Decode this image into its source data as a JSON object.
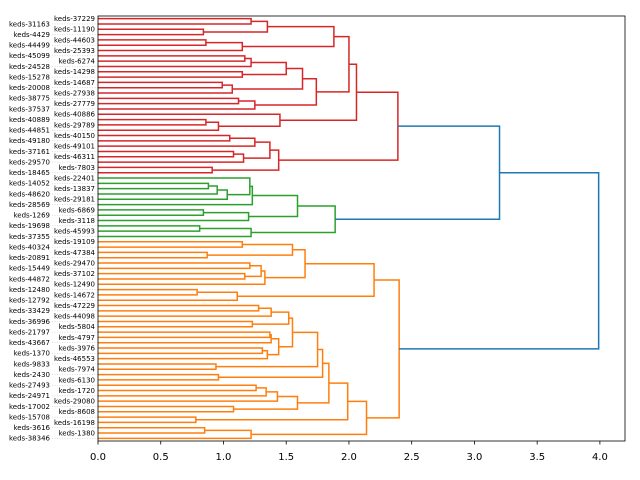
{
  "chart_data": {
    "type": "dendrogram",
    "orientation": "right",
    "title": "",
    "xlabel": "",
    "ylabel": "",
    "xlim": [
      0,
      4.2
    ],
    "xticks": [
      "0.0",
      "0.5",
      "1.0",
      "1.5",
      "2.0",
      "2.5",
      "3.0",
      "3.5",
      "4.0"
    ],
    "above_threshold_color": "#1f77b4",
    "tree": [
      3.99,
      [
        3.2,
        {
          "color": "#d62728",
          "node": [
            2.39,
            [
              2.06,
              [
                2.0,
                [
                  1.88,
                  [
                    1.35,
                    [
                      1.22,
                      "keds-37229",
                      "keds-31163"
                    ],
                    [
                      0.84,
                      "keds-11190",
                      "keds-4429"
                    ]
                  ],
                  [
                    1.15,
                    [
                      0.86,
                      "keds-44603",
                      "keds-44499"
                    ],
                    "keds-25393"
                  ]
                ],
                [
                  1.74,
                  [
                    1.63,
                    [
                      1.5,
                      [
                        1.22,
                        [
                          1.17,
                          "keds-45099",
                          "keds-6274"
                        ],
                        "keds-24528"
                      ],
                      [
                        1.15,
                        "keds-14298",
                        "keds-15278"
                      ]
                    ],
                    [
                      1.07,
                      [
                        0.99,
                        "keds-14687",
                        "keds-20008"
                      ],
                      "keds-27938"
                    ]
                  ],
                  [
                    1.25,
                    [
                      1.12,
                      "keds-38775",
                      "keds-27779"
                    ],
                    "keds-37537"
                  ]
                ]
              ],
              [
                1.45,
                "keds-40886",
                [
                  0.96,
                  [
                    0.86,
                    "keds-40889",
                    "keds-29789"
                  ],
                  "keds-44851"
                ]
              ]
            ],
            [
              1.44,
              [
                1.37,
                [
                  1.25,
                  [
                    1.05,
                    "keds-40150",
                    "keds-49180"
                  ],
                  "keds-49101"
                ],
                [
                  1.16,
                  [
                    1.08,
                    "keds-37161",
                    "keds-46311"
                  ],
                  "keds-29570"
                ]
              ],
              [
                0.91,
                "keds-7803",
                "keds-18465"
              ]
            ]
          ]
        },
        {
          "color": "#2ca02c",
          "node": [
            1.89,
            [
              1.59,
              [
                1.23,
                [
                  1.21,
                  "keds-22401",
                  [
                    1.03,
                    [
                      0.95,
                      [
                        0.88,
                        "keds-14052",
                        "keds-13837"
                      ],
                      "keds-48620"
                    ],
                    "keds-29181"
                  ]
                ],
                "keds-28569"
              ],
              [
                1.2,
                [
                  0.84,
                  "keds-6869",
                  "keds-1269"
                ],
                "keds-3118"
              ]
            ],
            [
              1.22,
              [
                0.81,
                "keds-19698",
                "keds-45993"
              ],
              "keds-37355"
            ]
          ]
        }
      ],
      {
        "color": "#ff7f0e",
        "node": [
          2.4,
          [
            2.2,
            [
              1.65,
              [
                1.55,
                [
                  1.15,
                  "keds-19109",
                  "keds-40324"
                ],
                [
                  0.87,
                  "keds-47384",
                  "keds-20891"
                ]
              ],
              [
                1.33,
                [
                  1.3,
                  [
                    1.21,
                    "keds-29470",
                    "keds-15449"
                  ],
                  [
                    1.17,
                    "keds-37102",
                    "keds-44872"
                  ]
                ],
                "keds-12490"
              ]
            ],
            [
              1.11,
              [
                0.79,
                "keds-12480",
                "keds-14672"
              ],
              "keds-12792"
            ]
          ],
          [
            2.14,
            [
              1.99,
              [
                1.84,
                [
                  1.79,
                  [
                    1.75,
                    [
                      1.55,
                      [
                        1.52,
                        [
                          1.38,
                          [
                            1.28,
                            "keds-47229",
                            "keds-33429"
                          ],
                          "keds-44098"
                        ],
                        [
                          1.23,
                          "keds-36996",
                          "keds-5804"
                        ]
                      ],
                      [
                        1.44,
                        [
                          1.38,
                          [
                            1.37,
                            "keds-21797",
                            "keds-4797"
                          ],
                          "keds-43667"
                        ],
                        [
                          1.35,
                          [
                            1.31,
                            "keds-3976",
                            "keds-1370"
                          ],
                          "keds-46553"
                        ]
                      ]
                    ],
                    [
                      0.94,
                      "keds-9833",
                      "keds-7974"
                    ]
                  ],
                  [
                    0.96,
                    "keds-2430",
                    "keds-6130"
                  ]
                ],
                [
                  1.59,
                  [
                    1.43,
                    [
                      1.34,
                      [
                        1.26,
                        "keds-27493",
                        "keds-1720"
                      ],
                      "keds-24971"
                    ],
                    "keds-29080"
                  ],
                  [
                    1.08,
                    "keds-17002",
                    "keds-8608"
                  ]
                ]
              ],
              [
                0.78,
                "keds-15708",
                "keds-16198"
              ]
            ],
            [
              1.22,
              [
                0.85,
                "keds-3616",
                "keds-1380"
              ],
              "keds-38346"
            ]
          ]
        ]
      }
    ]
  }
}
